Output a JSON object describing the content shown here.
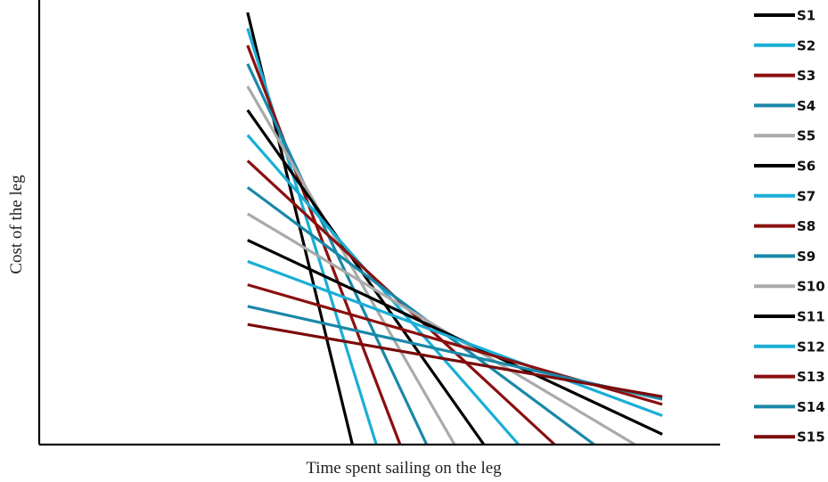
{
  "chart_data": {
    "type": "line",
    "title": "",
    "xlabel": "Time spent sailing on the leg",
    "ylabel": "Cost of the leg",
    "xlim": [
      0,
      100
    ],
    "ylim": [
      0,
      100
    ],
    "grid": false,
    "legend": "right",
    "series": [
      {
        "name": "S1",
        "color": "#000000",
        "x": [
          30.6,
          46.0
        ],
        "y": [
          100.0,
          0.0
        ]
      },
      {
        "name": "S2",
        "color": "#1aaed6",
        "x": [
          30.6,
          49.5
        ],
        "y": [
          96.3,
          0.0
        ]
      },
      {
        "name": "S3",
        "color": "#8b0f0f",
        "x": [
          30.6,
          53.0
        ],
        "y": [
          92.4,
          0.0
        ]
      },
      {
        "name": "S4",
        "color": "#1a88a8",
        "x": [
          30.6,
          56.9
        ],
        "y": [
          88.1,
          0.0
        ]
      },
      {
        "name": "S5",
        "color": "#aaaaaa",
        "x": [
          30.6,
          61.0
        ],
        "y": [
          82.9,
          0.0
        ]
      },
      {
        "name": "S6",
        "color": "#000000",
        "x": [
          30.6,
          65.3
        ],
        "y": [
          77.4,
          0.0
        ]
      },
      {
        "name": "S7",
        "color": "#1aaed6",
        "x": [
          30.6,
          70.4
        ],
        "y": [
          71.6,
          0.0
        ]
      },
      {
        "name": "S8",
        "color": "#8b0f0f",
        "x": [
          30.6,
          75.7
        ],
        "y": [
          65.7,
          0.0
        ]
      },
      {
        "name": "S9",
        "color": "#1a88a8",
        "x": [
          30.6,
          81.5
        ],
        "y": [
          59.5,
          0.0
        ]
      },
      {
        "name": "S10",
        "color": "#aaaaaa",
        "x": [
          30.6,
          87.5
        ],
        "y": [
          53.4,
          0.0
        ]
      },
      {
        "name": "S11",
        "color": "#000000",
        "x": [
          30.6,
          91.5
        ],
        "y": [
          47.3,
          2.4
        ]
      },
      {
        "name": "S12",
        "color": "#1aaed6",
        "x": [
          30.6,
          91.5
        ],
        "y": [
          42.4,
          6.7
        ]
      },
      {
        "name": "S13",
        "color": "#8b0f0f",
        "x": [
          30.6,
          91.5
        ],
        "y": [
          37.0,
          9.3
        ]
      },
      {
        "name": "S14",
        "color": "#1a88a8",
        "x": [
          30.6,
          91.5
        ],
        "y": [
          32.0,
          10.5
        ]
      },
      {
        "name": "S15",
        "color": "#7a0a0a",
        "x": [
          30.6,
          91.5
        ],
        "y": [
          27.8,
          11.1
        ]
      }
    ]
  }
}
